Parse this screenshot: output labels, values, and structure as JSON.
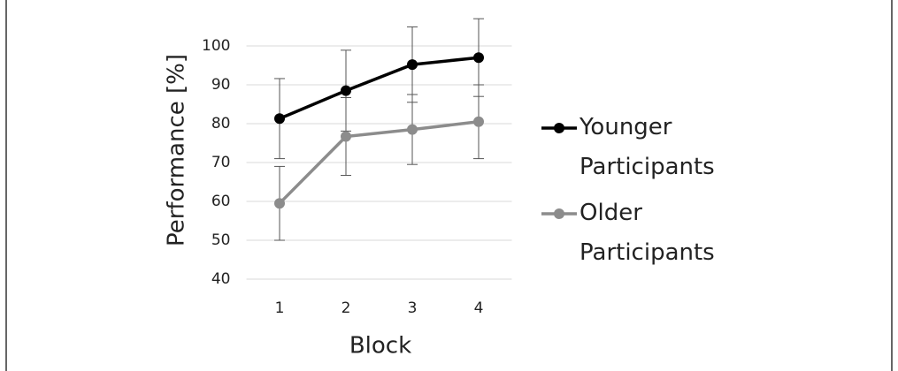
{
  "chart_data": {
    "type": "line",
    "x_label": "Block",
    "y_label": "Performance [%]",
    "categories": [
      "1",
      "2",
      "3",
      "4"
    ],
    "series": [
      {
        "name": "Younger Participants",
        "color": "#000000",
        "values": [
          81.3,
          88.5,
          95.2,
          97
        ],
        "errors": [
          10.3,
          10.4,
          9.7,
          10
        ]
      },
      {
        "name": "Older Participants",
        "color": "#8c8c8c",
        "values": [
          59.5,
          76.7,
          78.5,
          80.5
        ],
        "errors": [
          9.5,
          10,
          9,
          9.5
        ]
      }
    ],
    "ylim": [
      40,
      100
    ],
    "yticks": [
      40,
      50,
      60,
      70,
      80,
      90,
      100
    ],
    "grid": true,
    "legend": "right"
  }
}
